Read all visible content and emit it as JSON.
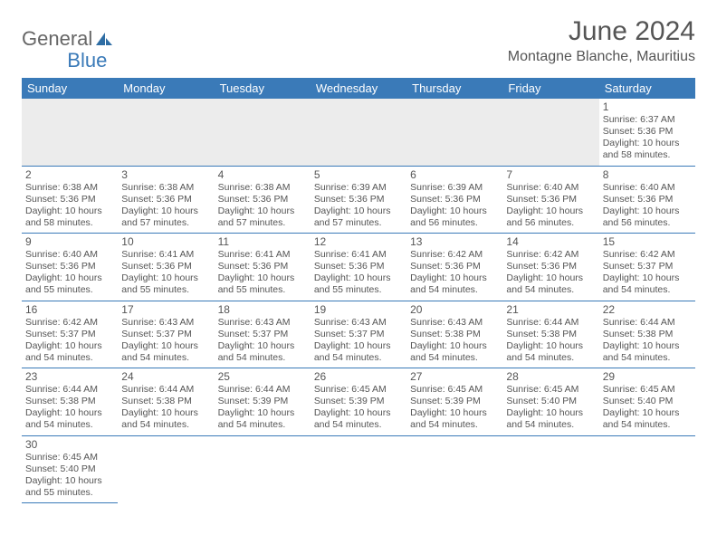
{
  "logo": {
    "text1": "General",
    "text2": "Blue"
  },
  "title": "June 2024",
  "location": "Montagne Blanche, Mauritius",
  "weekdays": [
    "Sunday",
    "Monday",
    "Tuesday",
    "Wednesday",
    "Thursday",
    "Friday",
    "Saturday"
  ],
  "colors": {
    "header_bg": "#3a7ab8",
    "header_fg": "#ffffff",
    "text": "#555555",
    "divider": "#3a7ab8"
  },
  "weeks": [
    [
      null,
      null,
      null,
      null,
      null,
      null,
      {
        "d": "1",
        "sr": "6:37 AM",
        "ss": "5:36 PM",
        "dl": "10 hours and 58 minutes."
      }
    ],
    [
      {
        "d": "2",
        "sr": "6:38 AM",
        "ss": "5:36 PM",
        "dl": "10 hours and 58 minutes."
      },
      {
        "d": "3",
        "sr": "6:38 AM",
        "ss": "5:36 PM",
        "dl": "10 hours and 57 minutes."
      },
      {
        "d": "4",
        "sr": "6:38 AM",
        "ss": "5:36 PM",
        "dl": "10 hours and 57 minutes."
      },
      {
        "d": "5",
        "sr": "6:39 AM",
        "ss": "5:36 PM",
        "dl": "10 hours and 57 minutes."
      },
      {
        "d": "6",
        "sr": "6:39 AM",
        "ss": "5:36 PM",
        "dl": "10 hours and 56 minutes."
      },
      {
        "d": "7",
        "sr": "6:40 AM",
        "ss": "5:36 PM",
        "dl": "10 hours and 56 minutes."
      },
      {
        "d": "8",
        "sr": "6:40 AM",
        "ss": "5:36 PM",
        "dl": "10 hours and 56 minutes."
      }
    ],
    [
      {
        "d": "9",
        "sr": "6:40 AM",
        "ss": "5:36 PM",
        "dl": "10 hours and 55 minutes."
      },
      {
        "d": "10",
        "sr": "6:41 AM",
        "ss": "5:36 PM",
        "dl": "10 hours and 55 minutes."
      },
      {
        "d": "11",
        "sr": "6:41 AM",
        "ss": "5:36 PM",
        "dl": "10 hours and 55 minutes."
      },
      {
        "d": "12",
        "sr": "6:41 AM",
        "ss": "5:36 PM",
        "dl": "10 hours and 55 minutes."
      },
      {
        "d": "13",
        "sr": "6:42 AM",
        "ss": "5:36 PM",
        "dl": "10 hours and 54 minutes."
      },
      {
        "d": "14",
        "sr": "6:42 AM",
        "ss": "5:36 PM",
        "dl": "10 hours and 54 minutes."
      },
      {
        "d": "15",
        "sr": "6:42 AM",
        "ss": "5:37 PM",
        "dl": "10 hours and 54 minutes."
      }
    ],
    [
      {
        "d": "16",
        "sr": "6:42 AM",
        "ss": "5:37 PM",
        "dl": "10 hours and 54 minutes."
      },
      {
        "d": "17",
        "sr": "6:43 AM",
        "ss": "5:37 PM",
        "dl": "10 hours and 54 minutes."
      },
      {
        "d": "18",
        "sr": "6:43 AM",
        "ss": "5:37 PM",
        "dl": "10 hours and 54 minutes."
      },
      {
        "d": "19",
        "sr": "6:43 AM",
        "ss": "5:37 PM",
        "dl": "10 hours and 54 minutes."
      },
      {
        "d": "20",
        "sr": "6:43 AM",
        "ss": "5:38 PM",
        "dl": "10 hours and 54 minutes."
      },
      {
        "d": "21",
        "sr": "6:44 AM",
        "ss": "5:38 PM",
        "dl": "10 hours and 54 minutes."
      },
      {
        "d": "22",
        "sr": "6:44 AM",
        "ss": "5:38 PM",
        "dl": "10 hours and 54 minutes."
      }
    ],
    [
      {
        "d": "23",
        "sr": "6:44 AM",
        "ss": "5:38 PM",
        "dl": "10 hours and 54 minutes."
      },
      {
        "d": "24",
        "sr": "6:44 AM",
        "ss": "5:38 PM",
        "dl": "10 hours and 54 minutes."
      },
      {
        "d": "25",
        "sr": "6:44 AM",
        "ss": "5:39 PM",
        "dl": "10 hours and 54 minutes."
      },
      {
        "d": "26",
        "sr": "6:45 AM",
        "ss": "5:39 PM",
        "dl": "10 hours and 54 minutes."
      },
      {
        "d": "27",
        "sr": "6:45 AM",
        "ss": "5:39 PM",
        "dl": "10 hours and 54 minutes."
      },
      {
        "d": "28",
        "sr": "6:45 AM",
        "ss": "5:40 PM",
        "dl": "10 hours and 54 minutes."
      },
      {
        "d": "29",
        "sr": "6:45 AM",
        "ss": "5:40 PM",
        "dl": "10 hours and 54 minutes."
      }
    ],
    [
      {
        "d": "30",
        "sr": "6:45 AM",
        "ss": "5:40 PM",
        "dl": "10 hours and 55 minutes."
      },
      null,
      null,
      null,
      null,
      null,
      null
    ]
  ],
  "labels": {
    "sunrise": "Sunrise:",
    "sunset": "Sunset:",
    "daylight": "Daylight:"
  }
}
